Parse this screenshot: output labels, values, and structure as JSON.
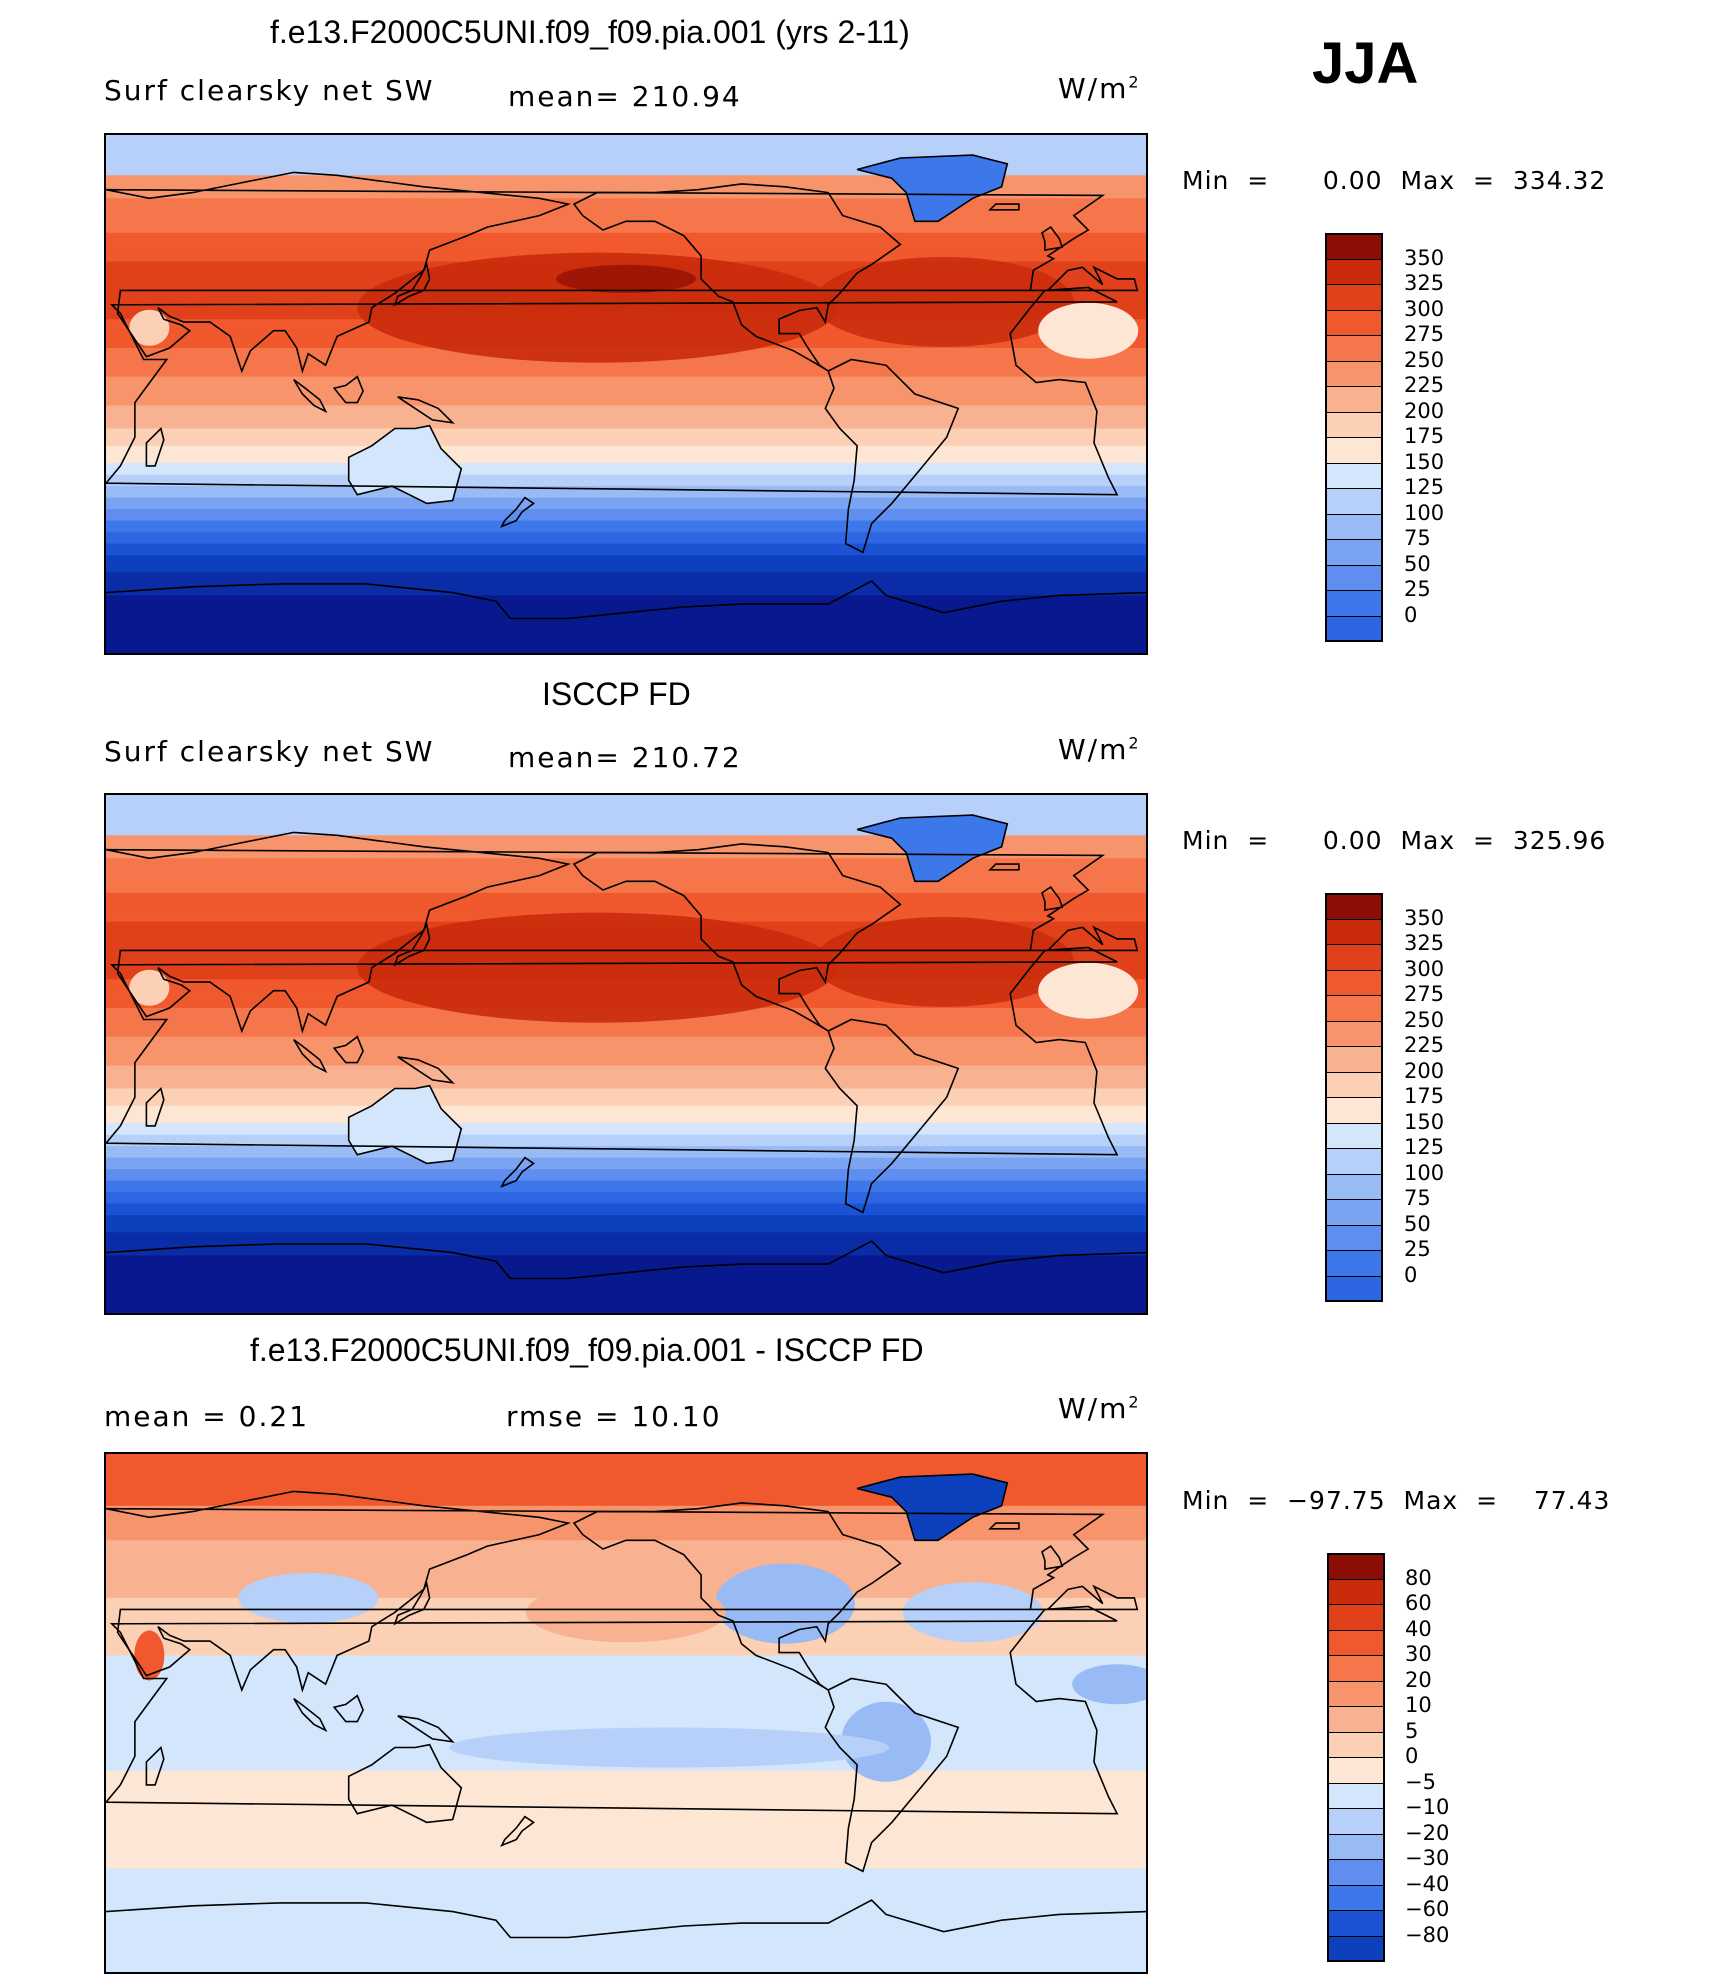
{
  "season": "JJA",
  "colors": {
    "abs_scale": [
      "#08198f",
      "#0a2ca6",
      "#0c40bd",
      "#1b53d4",
      "#2c66e2",
      "#3d78eb",
      "#5f8ef0",
      "#7aa3f2",
      "#98baf5",
      "#b6d0f9",
      "#d4e6fc",
      "#fde6d4",
      "#fcd0b4",
      "#f8b291",
      "#f7946c",
      "#f5764a",
      "#f0582d",
      "#e0401a",
      "#c92b0c",
      "#8c0d05"
    ],
    "diff_scale": [
      "#08198f",
      "#0a2ca6",
      "#0c40bd",
      "#1b53d4",
      "#3d78eb",
      "#5f8ef0",
      "#98baf5",
      "#b6d0f9",
      "#d4e6fc",
      "#fde6d4",
      "#fcd0b4",
      "#f8b291",
      "#f7946c",
      "#f5764a",
      "#f0582d",
      "#e0401a",
      "#c92b0c",
      "#8c0d05"
    ]
  },
  "panels": [
    {
      "title": "f.e13.F2000C5UNI.f09_f09.pia.001 (yrs 2-11)",
      "left_text": "Surf  clearsky  net  SW",
      "mid_text": "mean=  210.94",
      "units": "W/m",
      "units_sup": "2",
      "min_max": "Min  =      0.00  Max  =  334.32",
      "colorbar_labels": [
        "350",
        "325",
        "300",
        "275",
        "250",
        "225",
        "200",
        "175",
        "150",
        "125",
        "100",
        "75",
        "50",
        "25",
        "0"
      ],
      "field": "model"
    },
    {
      "title": "ISCCP FD",
      "left_text": "Surf  clearsky  net  SW",
      "mid_text": "mean=  210.72",
      "units": "W/m",
      "units_sup": "2",
      "min_max": "Min  =      0.00  Max  =  325.96",
      "colorbar_labels": [
        "350",
        "325",
        "300",
        "275",
        "250",
        "225",
        "200",
        "175",
        "150",
        "125",
        "100",
        "75",
        "50",
        "25",
        "0"
      ],
      "field": "obs"
    },
    {
      "title": "f.e13.F2000C5UNI.f09_f09.pia.001 - ISCCP FD",
      "left_text": "mean  =      0.21",
      "mid_text": "rmse  =      10.10",
      "units": "W/m",
      "units_sup": "2",
      "min_max": "Min  =  −97.75  Max  =    77.43",
      "colorbar_labels": [
        "80",
        "60",
        "40",
        "30",
        "20",
        "10",
        "5",
        "0",
        "−5",
        "−10",
        "−20",
        "−30",
        "−40",
        "−60",
        "−80"
      ],
      "field": "diff"
    }
  ]
}
